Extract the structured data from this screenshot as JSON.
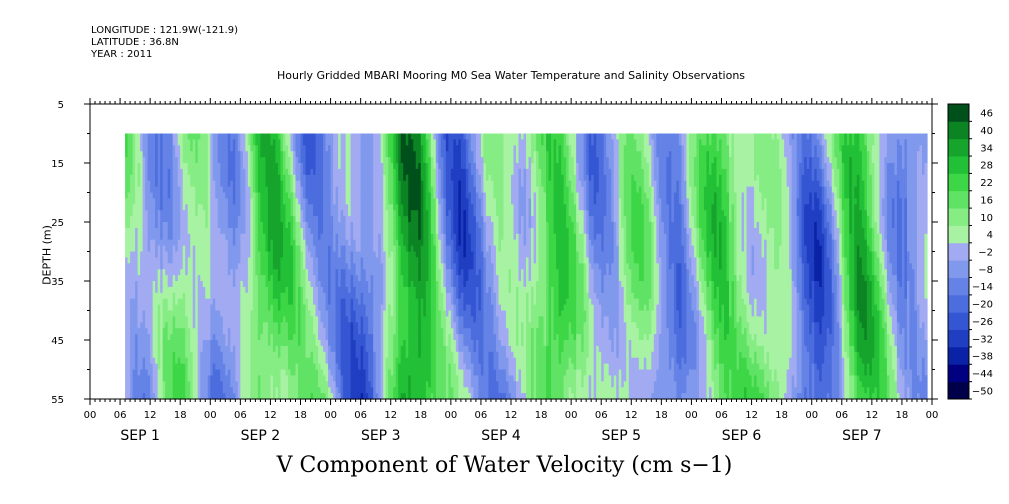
{
  "header": {
    "longitude": "LONGITUDE : 121.9W(-121.9)",
    "latitude": "LATITUDE : 36.8N",
    "year": "YEAR : 2011"
  },
  "chart_data": {
    "type": "heatmap",
    "title": "Hourly Gridded MBARI Mooring M0 Sea Water Temperature and Salinity Observations",
    "xlabel": "V Component of Water Velocity (cm s−1)",
    "ylabel": "DEPTH (m)",
    "y_axis": {
      "range": [
        5,
        55
      ],
      "inverted": true,
      "ticks": [
        5,
        15,
        25,
        35,
        45,
        55
      ],
      "data_range": [
        10,
        55
      ]
    },
    "x_axis": {
      "hour_tick_labels": [
        "00",
        "06",
        "12",
        "18"
      ],
      "day_labels": [
        "SEP  1",
        "SEP  2",
        "SEP  3",
        "SEP  4",
        "SEP  5",
        "SEP  6",
        "SEP  7"
      ],
      "data_start_hour": 7,
      "data_end_hour": 167
    },
    "colorbar": {
      "levels": [
        -50,
        -44,
        -38,
        -32,
        -26,
        -20,
        -14,
        -8,
        -2,
        4,
        10,
        16,
        22,
        28,
        34,
        40,
        46
      ],
      "labels": [
        "46",
        "40",
        "34",
        "28",
        "22",
        "16",
        "10",
        "4",
        "−2",
        "−8",
        "−14",
        "−20",
        "−26",
        "−32",
        "−38",
        "−44",
        "−50"
      ],
      "low_color": "#00004a",
      "high_color": "#00501c"
    }
  }
}
